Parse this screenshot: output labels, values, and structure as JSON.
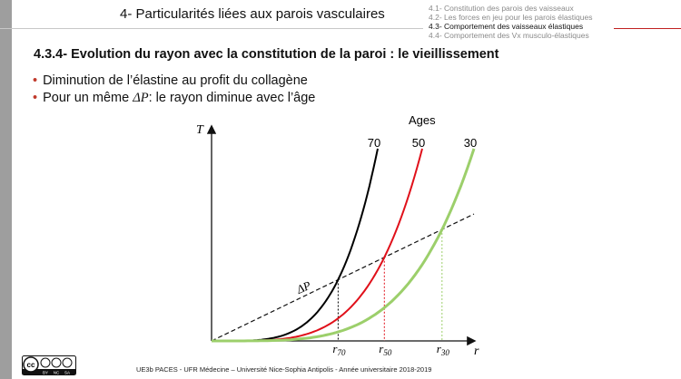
{
  "header": {
    "title": "4- Particularités liées aux parois vasculaires",
    "nav_items": [
      {
        "label": "4.1- Constitution des parois des vaisseaux",
        "active": false
      },
      {
        "label": "4.2- Les forces en jeu pour les parois élastiques",
        "active": false
      },
      {
        "label": "4.3- Comportement des vaisseaux élastiques",
        "active": true
      },
      {
        "label": "4.4- Comportement des Vx musculo-élastiques",
        "active": false
      }
    ]
  },
  "section_title": "4.3.4- Evolution du rayon avec la constitution de la paroi : le vieillissement",
  "bullets": {
    "line1": "Diminution de l’élastine au profit du collagène",
    "line2_prefix": "Pour un même ",
    "line2_symbol": "ΔP",
    "line2_suffix": ": le rayon diminue avec l’âge"
  },
  "diagram": {
    "y_axis_label": "T",
    "x_axis_label": "r",
    "legend_title": "Ages",
    "delta_p_label": "ΔP",
    "curves": [
      {
        "age_label": "70",
        "radius_label": "r70",
        "radius_main": "r",
        "radius_sub": "70",
        "color": "#000000",
        "k": 2.2
      },
      {
        "age_label": "50",
        "radius_label": "r50",
        "radius_main": "r",
        "radius_sub": "50",
        "color": "#e0101a",
        "k": 1.6
      },
      {
        "age_label": "30",
        "radius_label": "r30",
        "radius_main": "r",
        "radius_sub": "30",
        "color": "#9ccf6b",
        "k": 1.0
      }
    ]
  },
  "footer": {
    "text": "UE3b PACES - UFR Médecine – Université Nice-Sophia Antipolis - Année universitaire 2018-2019",
    "license_badge": "cc-by-nc-sa",
    "license_terms": [
      "BY",
      "NC",
      "SA"
    ]
  }
}
